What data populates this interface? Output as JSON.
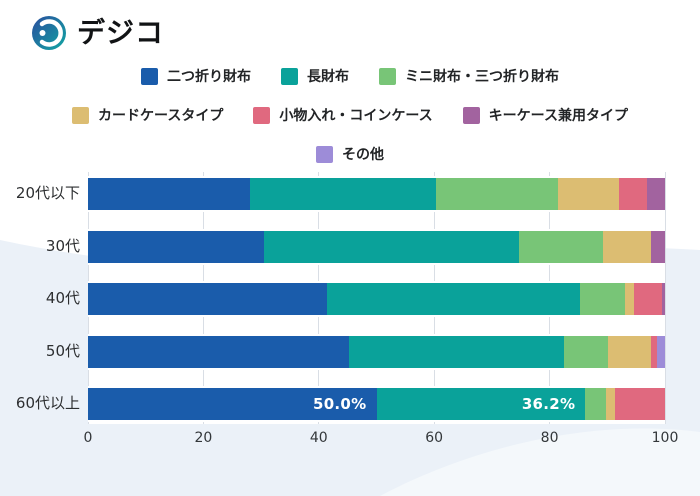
{
  "logo": {
    "text": "デジコ"
  },
  "background": {
    "wave_color": "#ebf1f8",
    "wave_color_light": "#f4f8fb"
  },
  "chart_data": {
    "type": "bar",
    "stacked": true,
    "orientation": "horizontal",
    "categories": [
      "20代以下",
      "30代",
      "40代",
      "50代",
      "60代以上"
    ],
    "series": [
      {
        "name": "二つ折り財布",
        "color": "#1a5cab",
        "values": [
          28.1,
          30.5,
          41.4,
          45.2,
          50.0
        ]
      },
      {
        "name": "長財布",
        "color": "#0aa29a",
        "values": [
          32.2,
          44.2,
          43.8,
          37.3,
          36.2
        ]
      },
      {
        "name": "ミニ財布・三つ折り財布",
        "color": "#78c577",
        "values": [
          21.2,
          14.5,
          7.8,
          7.6,
          3.5
        ]
      },
      {
        "name": "カードケースタイプ",
        "color": "#dcbd72",
        "values": [
          10.6,
          8.3,
          1.7,
          7.4,
          1.7
        ]
      },
      {
        "name": "小物入れ・コインケース",
        "color": "#e0697f",
        "values": [
          4.8,
          0,
          4.7,
          1.2,
          8.6
        ]
      },
      {
        "name": "キーケース兼用タイプ",
        "color": "#a2639f",
        "values": [
          3.1,
          2.5,
          0.6,
          0,
          0
        ]
      },
      {
        "name": "その他",
        "color": "#9d8cd8",
        "values": [
          0,
          0,
          0,
          1.3,
          0
        ]
      }
    ],
    "legend_rows": [
      [
        "二つ折り財布",
        "長財布",
        "ミニ財布・三つ折り財布"
      ],
      [
        "カードケースタイプ",
        "小物入れ・コインケース",
        "キーケース兼用タイプ"
      ],
      [
        "その他"
      ]
    ],
    "x_ticks": [
      "0",
      "20",
      "40",
      "60",
      "80",
      "100"
    ],
    "xlim": [
      0,
      100
    ],
    "grid": true,
    "legend_position": "top-center",
    "data_labels": [
      {
        "category": "60代以上",
        "series": "二つ折り財布",
        "text": "50.0%"
      },
      {
        "category": "60代以上",
        "series": "長財布",
        "text": "36.2%"
      }
    ]
  }
}
